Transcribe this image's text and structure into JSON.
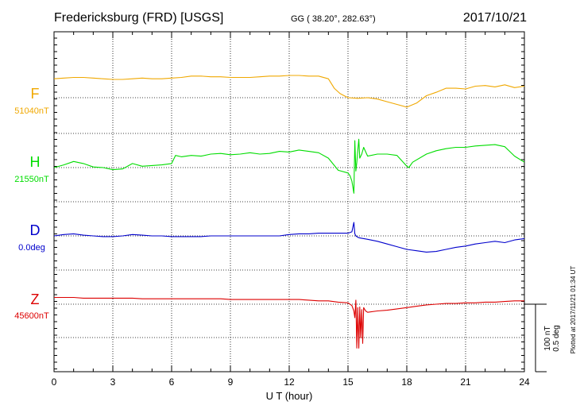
{
  "header": {
    "station": "Fredericksburg (FRD)  [USGS]",
    "coords": "GG ( 38.20°, 282.63°)",
    "date": "2017/10/21"
  },
  "footer": {
    "plotted": "Plotted at 2017/11/21 01:34 UT"
  },
  "colors": {
    "F": "#f0a800",
    "H": "#00dd00",
    "D": "#0000cc",
    "Z": "#dd0000",
    "axis": "#000000"
  },
  "chart_data": {
    "type": "line",
    "xlabel": "U T (hour)",
    "xlim": [
      0,
      24
    ],
    "xticks": [
      0,
      3,
      6,
      9,
      12,
      15,
      18,
      21,
      24
    ],
    "grid": true,
    "scale_bar": {
      "line1": "100 nT",
      "line2": "0.5 deg"
    },
    "series": [
      {
        "name": "F",
        "baseline_label": "51040nT",
        "units": "nT",
        "x": [
          0,
          0.5,
          1,
          1.5,
          2,
          2.5,
          3,
          3.5,
          4,
          4.5,
          5,
          5.5,
          6,
          6.5,
          7,
          7.5,
          8,
          8.5,
          9,
          9.5,
          10,
          10.5,
          11,
          11.5,
          12,
          12.5,
          13,
          13.5,
          14,
          14.3,
          14.6,
          15,
          15.5,
          16,
          16.5,
          17,
          17.5,
          18,
          18.5,
          19,
          19.5,
          20,
          20.5,
          21,
          21.5,
          22,
          22.5,
          23,
          23.5,
          24
        ],
        "y": [
          28,
          29,
          30,
          30,
          29,
          28,
          27,
          27,
          28,
          29,
          28,
          28,
          29,
          30,
          32,
          32,
          31,
          31,
          30,
          30,
          30,
          31,
          32,
          32,
          33,
          33,
          32,
          32,
          28,
          14,
          6,
          0,
          -1,
          0,
          -2,
          -6,
          -10,
          -14,
          -8,
          3,
          8,
          14,
          14,
          13,
          17,
          18,
          16,
          19,
          15,
          17
        ]
      },
      {
        "name": "H",
        "baseline_label": "21550nT",
        "units": "nT",
        "x": [
          0,
          0.5,
          1,
          1.5,
          2,
          2.5,
          3,
          3.5,
          4,
          4.5,
          5,
          5.5,
          6,
          6.2,
          6.5,
          7,
          7.5,
          8,
          8.5,
          9,
          9.5,
          10,
          10.5,
          11,
          11.5,
          12,
          12.5,
          13,
          13.5,
          14,
          14.5,
          15,
          15.1,
          15.2,
          15.3,
          15.35,
          15.4,
          15.45,
          15.5,
          15.55,
          15.6,
          15.7,
          15.8,
          16,
          16.5,
          17,
          17.5,
          18,
          18.1,
          18.3,
          19,
          19.5,
          20,
          20.5,
          21,
          21.5,
          22,
          22.5,
          23,
          23.5,
          24
        ],
        "y": [
          0,
          4,
          9,
          6,
          1,
          0,
          -3,
          -2,
          6,
          2,
          3,
          4,
          6,
          18,
          16,
          18,
          17,
          20,
          21,
          19,
          20,
          22,
          20,
          21,
          24,
          23,
          26,
          24,
          22,
          14,
          -4,
          -8,
          -12,
          -20,
          -38,
          40,
          -5,
          8,
          25,
          42,
          14,
          20,
          30,
          17,
          20,
          20,
          18,
          2,
          0,
          8,
          20,
          25,
          28,
          30,
          30,
          32,
          33,
          34,
          31,
          17,
          8
        ]
      },
      {
        "name": "D",
        "baseline_label": "0.0deg",
        "units": "deg",
        "x": [
          0,
          0.5,
          1,
          1.5,
          2,
          2.5,
          3,
          3.5,
          4,
          4.5,
          5,
          5.5,
          6,
          6.5,
          7,
          7.5,
          8,
          8.5,
          9,
          9.5,
          10,
          10.5,
          11,
          11.5,
          12,
          12.5,
          13,
          13.5,
          14,
          14.5,
          15,
          15.2,
          15.3,
          15.35,
          15.4,
          15.5,
          15.6,
          16,
          16.5,
          17,
          17.5,
          18,
          18.5,
          19,
          19.5,
          20,
          20.5,
          21,
          21.5,
          22,
          22.5,
          23,
          23.5,
          24
        ],
        "y": [
          0,
          2,
          3,
          1,
          0,
          -1,
          -1,
          0,
          2,
          1,
          0,
          0,
          -1,
          -1,
          -1,
          -1,
          0,
          0,
          0,
          0,
          0,
          0,
          0,
          0,
          2,
          3,
          3,
          4,
          4,
          4,
          4,
          6,
          20,
          3,
          0,
          -2,
          -3,
          -5,
          -8,
          -12,
          -16,
          -20,
          -22,
          -24,
          -23,
          -20,
          -17,
          -15,
          -12,
          -10,
          -8,
          -10,
          -6,
          -4
        ]
      },
      {
        "name": "Z",
        "baseline_label": "45600nT",
        "units": "nT",
        "x": [
          0,
          0.5,
          1,
          1.5,
          2,
          2.5,
          3,
          3.5,
          4,
          4.5,
          5,
          5.5,
          6,
          6.5,
          7,
          7.5,
          8,
          8.5,
          9,
          9.5,
          10,
          10.5,
          11,
          11.5,
          12,
          12.5,
          13,
          13.5,
          14,
          14.5,
          15,
          15.2,
          15.3,
          15.35,
          15.4,
          15.45,
          15.5,
          15.55,
          15.6,
          15.65,
          15.7,
          15.75,
          15.8,
          15.9,
          16,
          16.5,
          17,
          17.5,
          18,
          18.5,
          19,
          19.5,
          20,
          20.5,
          21,
          21.5,
          22,
          22.5,
          23,
          23.5,
          24
        ],
        "y": [
          10,
          10,
          10,
          9,
          9,
          9,
          9,
          9,
          9,
          8,
          8,
          8,
          8,
          8,
          8,
          8,
          8,
          8,
          7,
          7,
          7,
          7,
          7,
          7,
          7,
          7,
          6,
          5,
          5,
          3,
          2,
          -2,
          -10,
          -20,
          6,
          -65,
          -5,
          -65,
          -4,
          -50,
          -8,
          -58,
          -5,
          -10,
          -12,
          -10,
          -9,
          -7,
          -5,
          -3,
          -1,
          0,
          1,
          1,
          2,
          2,
          3,
          3,
          4,
          5,
          5
        ]
      }
    ]
  }
}
